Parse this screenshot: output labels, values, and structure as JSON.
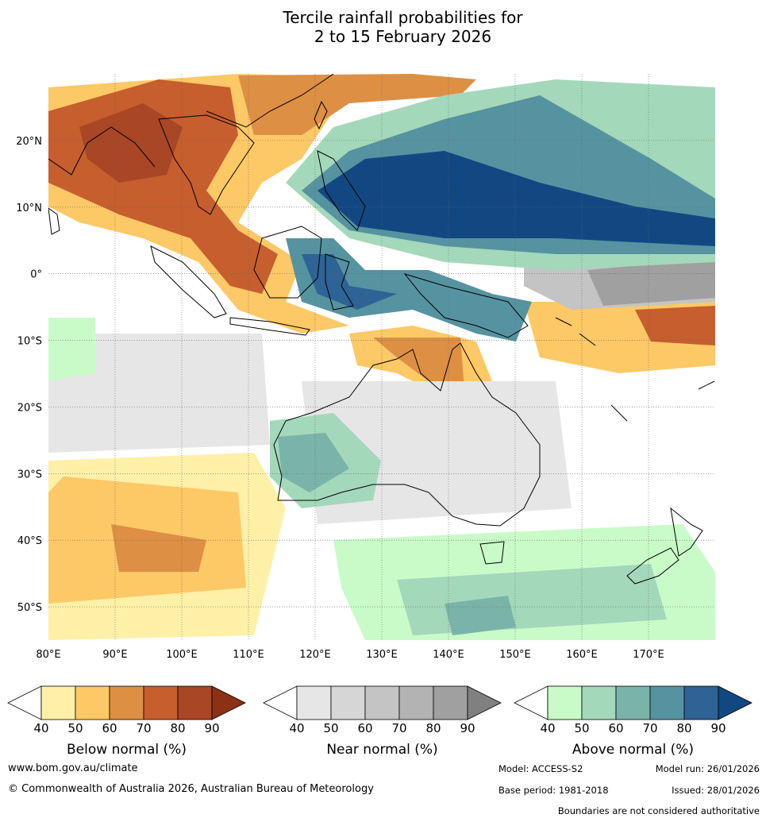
{
  "title": {
    "line1": "Tercile rainfall probabilities for",
    "line2": "2 to 15 February 2026"
  },
  "map": {
    "lon_labels": [
      "80°E",
      "90°E",
      "100°E",
      "110°E",
      "120°E",
      "130°E",
      "140°E",
      "150°E",
      "160°E",
      "170°E"
    ],
    "lon_values": [
      80,
      90,
      100,
      110,
      120,
      130,
      140,
      150,
      160,
      170
    ],
    "lon_range": [
      80,
      180
    ],
    "lat_labels": [
      "20°N",
      "10°N",
      "0°",
      "10°S",
      "20°S",
      "30°S",
      "40°S",
      "50°S"
    ],
    "lat_values": [
      20,
      10,
      0,
      -10,
      -20,
      -30,
      -40,
      -50
    ],
    "lat_range": [
      -55,
      30
    ],
    "gridlines": true
  },
  "legends": [
    {
      "title": "Below normal (%)",
      "ticks": [
        "40",
        "50",
        "60",
        "70",
        "80",
        "90"
      ],
      "colors": [
        "#fff0a8",
        "#fdc866",
        "#dd8f44",
        "#c65e2d",
        "#a84625",
        "#8c3016"
      ],
      "under_color": "#ffffff"
    },
    {
      "title": "Near normal (%)",
      "ticks": [
        "40",
        "50",
        "60",
        "70",
        "80",
        "90"
      ],
      "colors": [
        "#e6e6e6",
        "#d6d6d6",
        "#c4c4c4",
        "#b3b3b3",
        "#a0a0a0",
        "#808080"
      ],
      "under_color": "#ffffff"
    },
    {
      "title": "Above normal (%)",
      "ticks": [
        "40",
        "50",
        "60",
        "70",
        "80",
        "90"
      ],
      "colors": [
        "#c9fbc9",
        "#a4d8bb",
        "#7ab4a9",
        "#5693a0",
        "#2e6395",
        "#124882"
      ],
      "under_color": "#ffffff"
    }
  ],
  "footer": {
    "website": "www.bom.gov.au/climate",
    "copyright": "© Commonwealth of Australia 2026, Australian Bureau of Meteorology",
    "model": "Model: ACCESS-S2",
    "model_run": "Model run: 26/01/2026",
    "base_period": "Base period: 1981-2018",
    "issued": "Issued: 28/01/2026",
    "disclaimer": "Boundaries are not considered authoritative"
  }
}
